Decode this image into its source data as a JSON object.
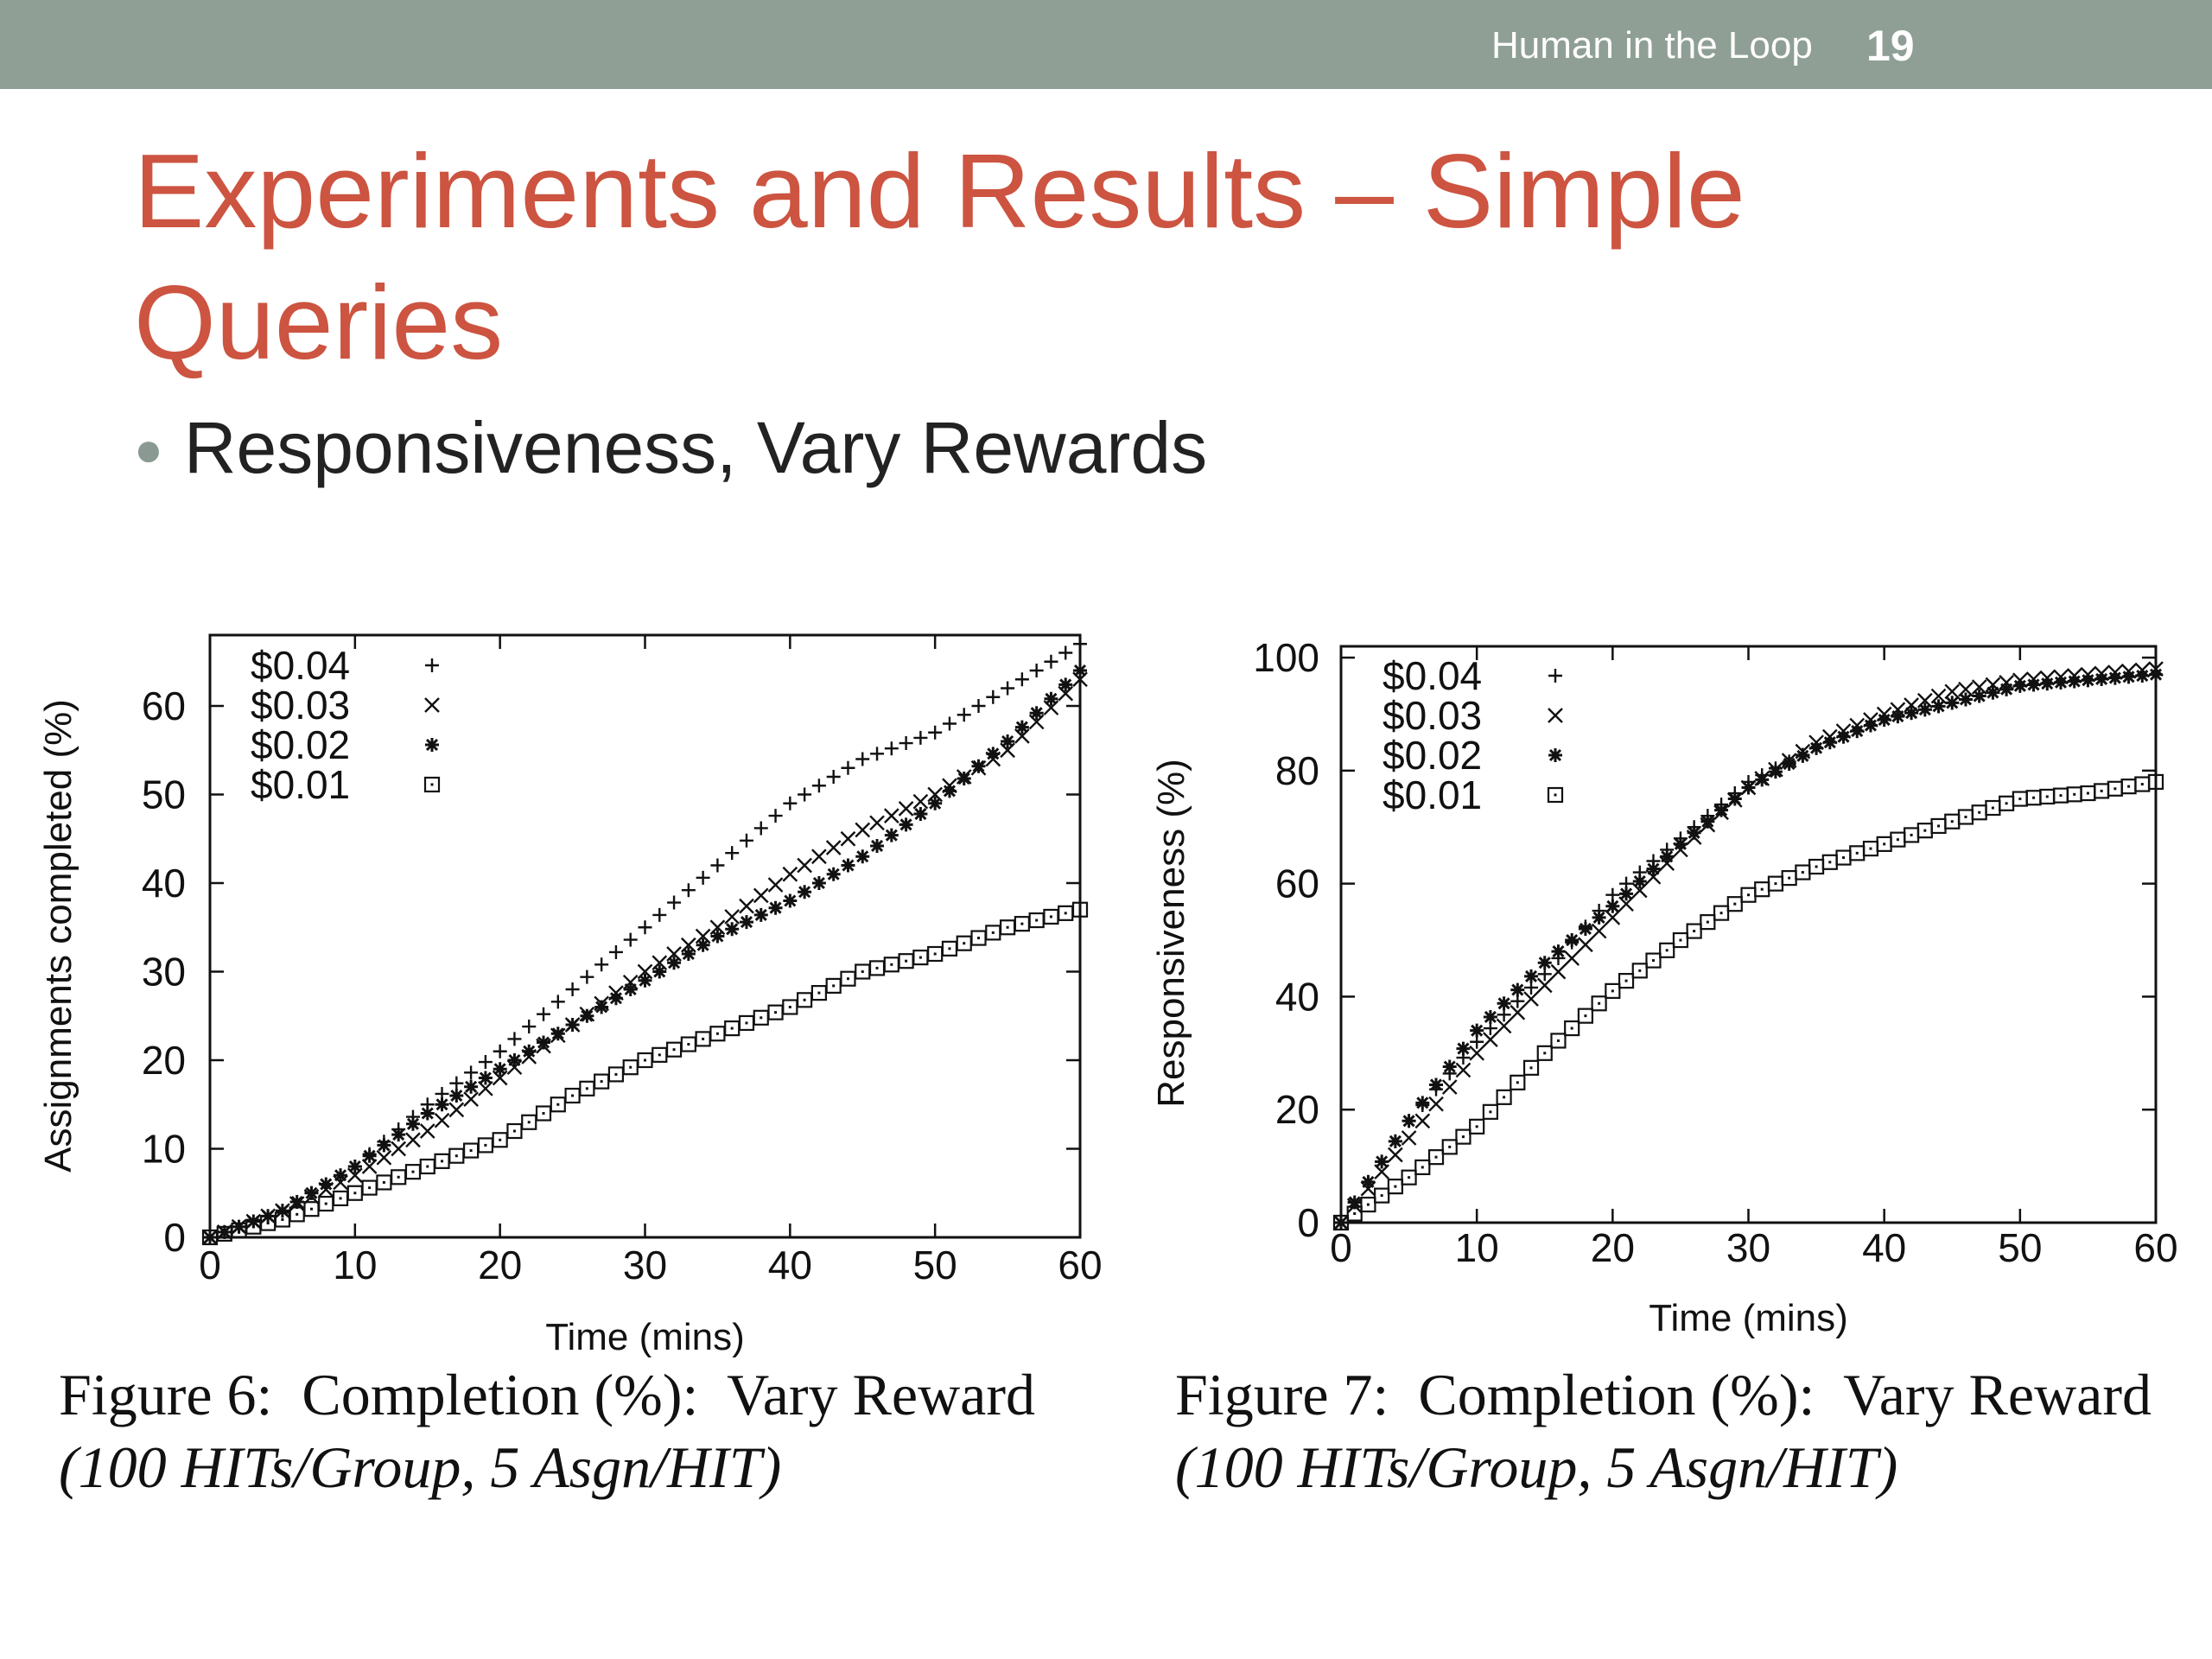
{
  "header": {
    "deck_title": "Human in the Loop",
    "slide_number": "19"
  },
  "slide": {
    "title": "Experiments and Results – Simple Queries",
    "bullet": "Responsiveness, Vary Rewards"
  },
  "figures": [
    {
      "caption_line1": "Figure 6:  Completion (%):  Vary Reward",
      "caption_line2": "(100 HITs/Group, 5 Asgn/HIT)"
    },
    {
      "caption_line1": "Figure 7:  Completion (%):  Vary Reward",
      "caption_line2": "(100 HITs/Group, 5 Asgn/HIT)"
    }
  ],
  "chart_data": [
    {
      "type": "scatter",
      "xlabel": "Time (mins)",
      "ylabel": "Assignments completed (%)",
      "xlim": [
        0,
        60
      ],
      "ylim": [
        0,
        68
      ],
      "xticks": [
        0,
        10,
        20,
        30,
        40,
        50,
        60
      ],
      "yticks": [
        0,
        10,
        20,
        30,
        40,
        50,
        60
      ],
      "legend": "top-left",
      "grid": false,
      "series": [
        {
          "name": "$0.04",
          "marker": "plus",
          "x": [
            0,
            5,
            10,
            15,
            20,
            25,
            30,
            35,
            40,
            45,
            50,
            55,
            60
          ],
          "y": [
            0,
            3,
            8,
            15,
            21,
            28,
            35,
            42,
            49,
            54,
            57,
            62,
            67
          ]
        },
        {
          "name": "$0.03",
          "marker": "cross",
          "x": [
            0,
            5,
            10,
            15,
            20,
            25,
            30,
            35,
            40,
            45,
            50,
            55,
            60
          ],
          "y": [
            0,
            3,
            7,
            12,
            18,
            24,
            30,
            35,
            41,
            46,
            50,
            55,
            63
          ]
        },
        {
          "name": "$0.02",
          "marker": "star",
          "x": [
            0,
            5,
            10,
            15,
            20,
            25,
            30,
            35,
            40,
            45,
            50,
            55,
            60
          ],
          "y": [
            0,
            3,
            8,
            14,
            19,
            24,
            29,
            34,
            38,
            43,
            49,
            56,
            64
          ]
        },
        {
          "name": "$0.01",
          "marker": "square",
          "x": [
            0,
            5,
            10,
            15,
            20,
            25,
            30,
            35,
            40,
            45,
            50,
            55,
            60
          ],
          "y": [
            0,
            2,
            5,
            8,
            11,
            16,
            20,
            23,
            26,
            30,
            32,
            35,
            37
          ]
        }
      ]
    },
    {
      "type": "scatter",
      "xlabel": "Time (mins)",
      "ylabel": "Responsiveness (%)",
      "xlim": [
        0,
        60
      ],
      "ylim": [
        0,
        102
      ],
      "xticks": [
        0,
        10,
        20,
        30,
        40,
        50,
        60
      ],
      "yticks": [
        0,
        20,
        40,
        60,
        80,
        100
      ],
      "legend": "top-left",
      "grid": false,
      "series": [
        {
          "name": "$0.04",
          "marker": "plus",
          "x": [
            0,
            5,
            10,
            15,
            20,
            25,
            30,
            35,
            40,
            45,
            50,
            55,
            60
          ],
          "y": [
            0,
            18,
            32,
            44,
            58,
            68,
            78,
            84,
            89,
            92,
            95,
            96,
            97
          ]
        },
        {
          "name": "$0.03",
          "marker": "cross",
          "x": [
            0,
            5,
            10,
            15,
            20,
            25,
            30,
            35,
            40,
            45,
            50,
            55,
            60
          ],
          "y": [
            0,
            15,
            30,
            42,
            54,
            66,
            77,
            85,
            90,
            94,
            96,
            97,
            98
          ]
        },
        {
          "name": "$0.02",
          "marker": "star",
          "x": [
            0,
            5,
            10,
            15,
            20,
            25,
            30,
            35,
            40,
            45,
            50,
            55,
            60
          ],
          "y": [
            0,
            18,
            34,
            46,
            56,
            67,
            77,
            84,
            89,
            92,
            95,
            96,
            97
          ]
        },
        {
          "name": "$0.01",
          "marker": "square",
          "x": [
            0,
            5,
            10,
            15,
            20,
            25,
            30,
            35,
            40,
            45,
            50,
            55,
            60
          ],
          "y": [
            0,
            8,
            17,
            30,
            41,
            50,
            58,
            63,
            67,
            71,
            75,
            76,
            78
          ]
        }
      ]
    }
  ]
}
